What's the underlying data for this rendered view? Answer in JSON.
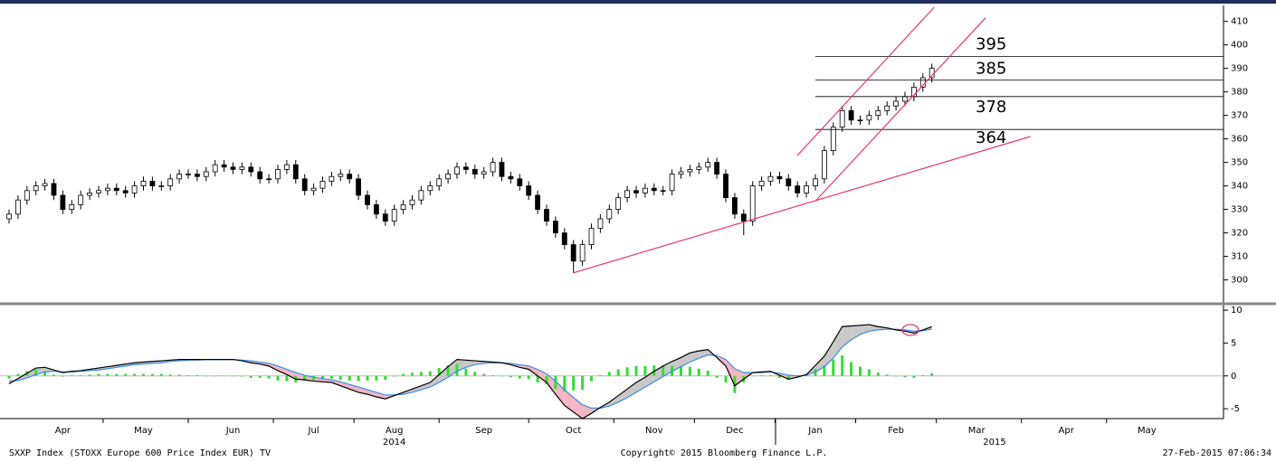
{
  "chart_data": [
    {
      "type": "candlestick",
      "categories": [
        null,
        null,
        null,
        null,
        null,
        null,
        "Apr",
        null,
        null,
        null,
        null,
        null,
        null,
        null,
        null,
        "May",
        null,
        null,
        null,
        null,
        null,
        null,
        null,
        null,
        null,
        "Jun",
        null,
        null,
        null,
        null,
        null,
        null,
        null,
        null,
        "Jul",
        null,
        null,
        null,
        null,
        null,
        null,
        null,
        null,
        "Aug",
        null,
        null,
        null,
        null,
        null,
        null,
        null,
        null,
        null,
        "Sep",
        null,
        null,
        null,
        null,
        null,
        null,
        null,
        null,
        null,
        "Oct",
        null,
        null,
        null,
        null,
        null,
        null,
        null,
        null,
        "Nov",
        null,
        null,
        null,
        null,
        null,
        null,
        null,
        null,
        "Dec",
        null,
        null,
        null,
        null,
        null,
        null,
        null,
        null,
        "Jan",
        null,
        null,
        null,
        null,
        null,
        null,
        null,
        null,
        "Feb",
        null,
        null,
        null,
        null,
        null,
        null,
        null,
        null,
        "Mar",
        null,
        null,
        null,
        null,
        null,
        null,
        null,
        null,
        null,
        "Apr",
        null,
        null,
        null,
        null,
        null,
        null,
        null,
        null,
        "May",
        null,
        null,
        null,
        null,
        null,
        null,
        null,
        null
      ],
      "year_labels": [
        null,
        null,
        null,
        null,
        null,
        null,
        null,
        null,
        null,
        null,
        null,
        null,
        null,
        null,
        null,
        null,
        null,
        null,
        null,
        null,
        null,
        null,
        null,
        null,
        null,
        null,
        null,
        null,
        null,
        null,
        null,
        null,
        null,
        null,
        null,
        null,
        null,
        null,
        null,
        null,
        null,
        null,
        null,
        "2014",
        null,
        null,
        null,
        null,
        null,
        null,
        null,
        null,
        null,
        null,
        null,
        null,
        null,
        null,
        null,
        null,
        null,
        null,
        null,
        null,
        null,
        null,
        null,
        null,
        null,
        null,
        null,
        null,
        null,
        null,
        null,
        null,
        null,
        null,
        null,
        null,
        null,
        null,
        null,
        null,
        null,
        null,
        null,
        null,
        null,
        null,
        null,
        null,
        null,
        null,
        null,
        null,
        null,
        null,
        null,
        null,
        null,
        null,
        null,
        null,
        null,
        null,
        null,
        null,
        null,
        null,
        "2015",
        null,
        null,
        null,
        null,
        null,
        null,
        null,
        null,
        null,
        null,
        null,
        null,
        null,
        null,
        null,
        null,
        null,
        null,
        null,
        null,
        null,
        null,
        null,
        null,
        null
      ],
      "open": [
        326,
        328,
        334,
        338,
        340,
        341,
        336,
        330,
        332,
        336,
        337,
        338,
        339,
        338,
        337,
        340,
        342,
        340,
        340,
        343,
        345,
        345,
        344,
        346,
        349,
        348,
        347,
        348,
        346,
        343,
        343,
        347,
        349,
        343,
        338,
        339,
        342,
        344,
        345,
        343,
        336,
        332,
        328,
        325,
        330,
        332,
        334,
        338,
        340,
        343,
        345,
        348,
        347,
        345,
        346,
        350,
        344,
        343,
        340,
        336,
        330,
        325,
        320,
        315,
        308,
        315,
        322,
        326,
        330,
        335,
        338,
        337,
        339,
        338,
        338,
        345,
        346,
        347,
        348,
        350,
        345,
        335,
        328,
        325,
        340,
        342,
        344,
        343,
        340,
        337,
        340,
        343,
        355,
        365,
        372,
        368,
        368,
        370,
        372,
        374,
        376,
        378,
        382,
        386,
        null,
        null,
        null,
        null,
        null,
        null,
        null,
        null,
        null,
        null,
        null,
        null,
        null,
        null,
        null,
        null,
        null,
        null,
        null,
        null,
        null,
        null,
        null,
        null,
        null,
        null,
        null,
        null,
        null,
        null,
        null,
        null
      ],
      "high": [
        330,
        336,
        340,
        342,
        343,
        343,
        338,
        334,
        338,
        339,
        340,
        341,
        341,
        340,
        342,
        344,
        344,
        342,
        345,
        347,
        347,
        347,
        348,
        351,
        351,
        350,
        350,
        350,
        348,
        345,
        349,
        351,
        351,
        345,
        341,
        344,
        346,
        347,
        347,
        345,
        338,
        334,
        330,
        332,
        334,
        336,
        340,
        342,
        345,
        347,
        350,
        350,
        349,
        348,
        352,
        352,
        346,
        345,
        342,
        338,
        332,
        327,
        322,
        317,
        317,
        324,
        328,
        332,
        337,
        340,
        340,
        341,
        341,
        340,
        347,
        348,
        349,
        350,
        352,
        352,
        347,
        337,
        330,
        342,
        344,
        346,
        346,
        345,
        342,
        342,
        345,
        357,
        367,
        374,
        374,
        370,
        372,
        374,
        376,
        378,
        380,
        384,
        388,
        392,
        null,
        null,
        null,
        null,
        null,
        null,
        null,
        null,
        null,
        null,
        null,
        null,
        null,
        null,
        null,
        null,
        null,
        null,
        null,
        null,
        null,
        null,
        null,
        null,
        null,
        null,
        null,
        null,
        null,
        null,
        null,
        null
      ],
      "low": [
        324,
        326,
        332,
        336,
        338,
        334,
        328,
        328,
        330,
        334,
        335,
        336,
        336,
        335,
        335,
        338,
        338,
        338,
        338,
        341,
        343,
        342,
        342,
        344,
        346,
        345,
        345,
        344,
        341,
        341,
        341,
        345,
        341,
        336,
        336,
        337,
        340,
        342,
        341,
        334,
        330,
        326,
        323,
        323,
        328,
        330,
        332,
        336,
        338,
        341,
        343,
        345,
        343,
        343,
        344,
        342,
        341,
        338,
        334,
        328,
        323,
        318,
        313,
        303,
        306,
        313,
        320,
        324,
        328,
        333,
        335,
        335,
        336,
        336,
        336,
        343,
        344,
        345,
        346,
        343,
        333,
        326,
        319,
        323,
        338,
        340,
        341,
        338,
        335,
        335,
        338,
        341,
        353,
        363,
        366,
        366,
        366,
        368,
        370,
        372,
        374,
        376,
        380,
        384,
        null,
        null,
        null,
        null,
        null,
        null,
        null,
        null,
        null,
        null,
        null,
        null,
        null,
        null,
        null,
        null,
        null,
        null,
        null,
        null,
        null,
        null,
        null,
        null,
        null,
        null,
        null,
        null,
        null,
        null,
        null,
        null
      ],
      "close": [
        328,
        334,
        338,
        340,
        341,
        336,
        330,
        332,
        336,
        337,
        338,
        339,
        338,
        337,
        340,
        342,
        340,
        340,
        343,
        345,
        345,
        344,
        346,
        349,
        348,
        347,
        348,
        346,
        343,
        343,
        347,
        349,
        343,
        338,
        339,
        342,
        344,
        345,
        343,
        336,
        332,
        328,
        325,
        330,
        332,
        334,
        338,
        340,
        343,
        345,
        348,
        347,
        345,
        346,
        350,
        344,
        343,
        340,
        336,
        330,
        325,
        320,
        315,
        308,
        315,
        322,
        326,
        330,
        335,
        338,
        337,
        339,
        338,
        338,
        345,
        346,
        347,
        348,
        350,
        345,
        335,
        328,
        325,
        340,
        342,
        344,
        343,
        340,
        337,
        340,
        343,
        355,
        365,
        372,
        368,
        368,
        370,
        372,
        374,
        376,
        378,
        382,
        386,
        390,
        null,
        null,
        null,
        null,
        null,
        null,
        null,
        null,
        null,
        null,
        null,
        null,
        null,
        null,
        null,
        null,
        null,
        null,
        null,
        null,
        null,
        null,
        null,
        null,
        null,
        null,
        null,
        null,
        null,
        null,
        null,
        null
      ],
      "up_color": "#ffffff",
      "down_color": "#000000",
      "ylim": [
        291,
        416
      ],
      "yticks": [
        300,
        310,
        320,
        330,
        340,
        350,
        360,
        370,
        380,
        390,
        400,
        410
      ],
      "levels": [
        395,
        385,
        378,
        364
      ],
      "levels_from": 90,
      "level_color": "#000000",
      "trendlines": [
        {
          "from": [
            63,
            303
          ],
          "to": [
            114,
            361
          ]
        },
        {
          "from": [
            90,
            333.5
          ],
          "to": [
            109,
            411.5
          ]
        },
        {
          "from": [
            88,
            353
          ],
          "to": [
            103.5,
            417
          ]
        }
      ],
      "trendline_color": "#e8386a"
    },
    {
      "type": "macd",
      "macd": {
        "color": "#000000",
        "values": [
          -1.2,
          -0.4,
          0.4,
          1.2,
          1.3,
          0.9,
          0.5,
          0.7,
          0.8,
          1.0,
          1.2,
          1.4,
          1.6,
          1.8,
          2.0,
          2.1,
          2.2,
          2.3,
          2.4,
          2.5,
          2.5,
          2.5,
          2.5,
          2.5,
          2.5,
          2.5,
          2.3,
          2.0,
          1.8,
          1.5,
          0.8,
          0.2,
          -0.5,
          -0.6,
          -0.8,
          -0.9,
          -1.0,
          -1.5,
          -2.0,
          -2.5,
          -2.8,
          -3.2,
          -3.5,
          -3.0,
          -2.5,
          -2.0,
          -1.5,
          -1.0,
          0.2,
          1.4,
          2.5,
          2.4,
          2.3,
          2.2,
          2.1,
          2.0,
          1.7,
          1.3,
          1.0,
          0.0,
          -1.0,
          -2.8,
          -4.5,
          -5.5,
          -6.5,
          -5.7,
          -4.8,
          -4.0,
          -3.0,
          -2.0,
          -1.0,
          -0.2,
          0.7,
          1.5,
          2.2,
          2.8,
          3.5,
          3.8,
          4.0,
          2.8,
          1.5,
          -1.5,
          -0.5,
          0.5,
          0.6,
          0.7,
          0.1,
          -0.5,
          -0.2,
          0.2,
          1.6,
          3.0,
          5.2,
          7.5,
          7.6,
          7.7,
          7.8,
          7.5,
          7.3,
          7.0,
          6.8,
          6.5,
          7.0,
          7.5,
          null,
          null,
          null,
          null,
          null,
          null,
          null,
          null,
          null,
          null,
          null,
          null,
          null,
          null,
          null,
          null,
          null,
          null,
          null,
          null,
          null,
          null,
          null,
          null,
          null,
          null,
          null,
          null,
          null,
          null,
          null,
          null
        ]
      },
      "signal": {
        "color": "#3a8ee6",
        "values": [
          -0.8,
          -0.7,
          -0.3,
          0.2,
          0.6,
          0.7,
          0.6,
          0.6,
          0.7,
          0.8,
          0.9,
          1.1,
          1.3,
          1.5,
          1.7,
          1.8,
          1.9,
          2.0,
          2.2,
          2.3,
          2.4,
          2.4,
          2.5,
          2.5,
          2.5,
          2.5,
          2.4,
          2.3,
          2.1,
          1.9,
          1.5,
          1.0,
          0.5,
          0.1,
          -0.2,
          -0.4,
          -0.6,
          -0.9,
          -1.3,
          -1.7,
          -2.1,
          -2.5,
          -2.9,
          -2.9,
          -2.8,
          -2.5,
          -2.1,
          -1.7,
          -1.0,
          -0.2,
          0.7,
          1.3,
          1.7,
          1.9,
          2.0,
          2.0,
          1.9,
          1.7,
          1.5,
          1.0,
          0.3,
          -0.8,
          -2.1,
          -3.3,
          -4.4,
          -4.9,
          -4.9,
          -4.6,
          -4.0,
          -3.3,
          -2.5,
          -1.7,
          -0.9,
          -0.1,
          0.7,
          1.4,
          2.1,
          2.7,
          3.2,
          3.1,
          2.5,
          1.1,
          0.5,
          0.5,
          0.5,
          0.6,
          0.4,
          0.1,
          0.0,
          0.1,
          0.6,
          1.4,
          2.7,
          4.4,
          5.5,
          6.3,
          6.8,
          7.0,
          7.1,
          7.1,
          7.0,
          6.8,
          6.9,
          7.1,
          null,
          null,
          null,
          null,
          null,
          null,
          null,
          null,
          null,
          null,
          null,
          null,
          null,
          null,
          null,
          null,
          null,
          null,
          null,
          null,
          null,
          null,
          null,
          null,
          null,
          null,
          null,
          null,
          null,
          null,
          null,
          null
        ]
      },
      "histogram": {
        "color": "#33dd33",
        "values": [
          -0.4,
          0.3,
          0.7,
          1.0,
          0.7,
          0.2,
          -0.1,
          0.1,
          0.1,
          0.2,
          0.3,
          0.3,
          0.3,
          0.3,
          0.3,
          0.3,
          0.3,
          0.3,
          0.2,
          0.2,
          0.1,
          0.1,
          0,
          0,
          0,
          0,
          -0.1,
          -0.3,
          -0.3,
          -0.4,
          -0.7,
          -0.8,
          -1.0,
          -0.7,
          -0.6,
          -0.5,
          -0.4,
          -0.6,
          -0.7,
          -0.8,
          -0.7,
          -0.7,
          -0.6,
          -0.1,
          0.3,
          0.5,
          0.6,
          0.7,
          1.2,
          1.6,
          1.8,
          1.1,
          0.6,
          0.3,
          0.1,
          0,
          -0.2,
          -0.4,
          -0.5,
          -1.0,
          -1.3,
          -2.0,
          -2.4,
          -2.2,
          -2.1,
          -0.8,
          0.1,
          0.6,
          1.0,
          1.3,
          1.5,
          1.5,
          1.6,
          1.6,
          1.5,
          1.4,
          1.4,
          1.1,
          0.8,
          -0.3,
          -1.0,
          -2.6,
          -1.0,
          0,
          0.1,
          0.1,
          -0.3,
          -0.6,
          -0.2,
          0.1,
          1.0,
          1.6,
          2.5,
          3.1,
          2.1,
          1.4,
          1.0,
          0.5,
          0.2,
          -0.1,
          -0.2,
          -0.3,
          0.1,
          0.4,
          null,
          null,
          null,
          null,
          null,
          null,
          null,
          null,
          null,
          null,
          null,
          null,
          null,
          null,
          null,
          null,
          null,
          null,
          null,
          null,
          null,
          null,
          null,
          null,
          null,
          null,
          null,
          null,
          null,
          null,
          null,
          null
        ]
      },
      "above_fill": "#c8c8c8",
      "below_fill": "#f4b6c2",
      "ylim": [
        -6.5,
        10.7
      ],
      "yticks": [
        -5,
        0,
        5,
        10
      ]
    }
  ],
  "footer": {
    "left": "SXXP Index (STOXX Europe 600 Price Index EUR) TV",
    "center": "Copyright© 2015 Bloomberg Finance L.P.",
    "right": "27-Feb-2015 07:06:34"
  }
}
